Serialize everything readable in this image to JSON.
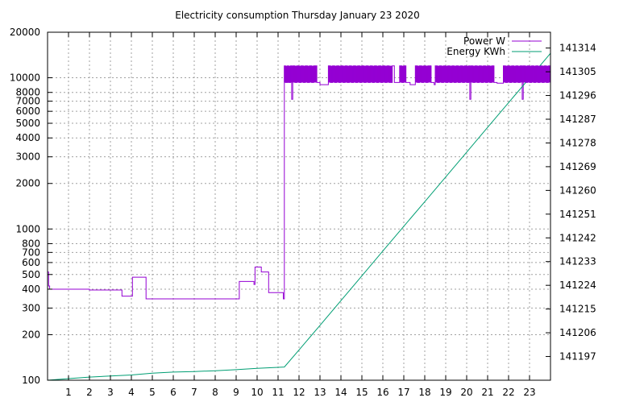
{
  "chart_data": {
    "type": "line",
    "title": "Electricity consumption Thursday January 23 2020",
    "x": {
      "label": "",
      "range": [
        0,
        24
      ],
      "ticks": [
        1,
        2,
        3,
        4,
        5,
        6,
        7,
        8,
        9,
        10,
        11,
        12,
        13,
        14,
        15,
        16,
        17,
        18,
        19,
        20,
        21,
        22,
        23
      ]
    },
    "y_left": {
      "label": "",
      "scale": "log",
      "range": [
        100,
        20000
      ],
      "ticks": [
        100,
        200,
        300,
        400,
        500,
        600,
        700,
        800,
        1000,
        2000,
        3000,
        4000,
        5000,
        6000,
        7000,
        8000,
        10000,
        20000
      ]
    },
    "y_right": {
      "label": "",
      "scale": "linear",
      "range": [
        141188,
        141320
      ],
      "ticks": [
        141197,
        141206,
        141215,
        141224,
        141233,
        141242,
        141251,
        141260,
        141269,
        141278,
        141287,
        141296,
        141305,
        141314
      ]
    },
    "grid": true,
    "legend_position": "top-right",
    "colors": {
      "power": "#9400d3",
      "energy": "#009e73"
    },
    "series": [
      {
        "name": "Power W",
        "axis": "left",
        "points": [
          [
            0.0,
            520
          ],
          [
            0.05,
            420
          ],
          [
            0.1,
            400
          ],
          [
            1.95,
            400
          ],
          [
            2.0,
            395
          ],
          [
            3.5,
            395
          ],
          [
            3.55,
            360
          ],
          [
            4.0,
            360
          ],
          [
            4.05,
            480
          ],
          [
            4.65,
            480
          ],
          [
            4.7,
            345
          ],
          [
            9.1,
            345
          ],
          [
            9.15,
            450
          ],
          [
            9.8,
            450
          ],
          [
            9.85,
            430
          ],
          [
            9.9,
            560
          ],
          [
            10.15,
            560
          ],
          [
            10.2,
            520
          ],
          [
            10.5,
            520
          ],
          [
            10.55,
            380
          ],
          [
            11.2,
            380
          ],
          [
            11.25,
            345
          ],
          [
            11.3,
            12000
          ],
          [
            11.35,
            9300
          ],
          [
            11.45,
            12000
          ],
          [
            11.5,
            9300
          ],
          [
            11.6,
            12000
          ],
          [
            11.65,
            7200
          ],
          [
            11.7,
            12000
          ],
          [
            11.8,
            9300
          ],
          [
            11.9,
            12000
          ],
          [
            12.0,
            9300
          ],
          [
            12.1,
            12000
          ],
          [
            12.2,
            9300
          ],
          [
            12.3,
            12000
          ],
          [
            12.4,
            9300
          ],
          [
            12.5,
            12000
          ],
          [
            12.6,
            9300
          ],
          [
            12.7,
            12000
          ],
          [
            12.85,
            9300
          ],
          [
            13.0,
            9000
          ],
          [
            13.35,
            9000
          ],
          [
            13.4,
            12000
          ],
          [
            13.5,
            9300
          ],
          [
            13.6,
            12000
          ],
          [
            13.7,
            9300
          ],
          [
            13.8,
            12000
          ],
          [
            13.9,
            9300
          ],
          [
            14.0,
            12000
          ],
          [
            14.1,
            9300
          ],
          [
            14.2,
            12000
          ],
          [
            14.3,
            9300
          ],
          [
            14.4,
            12000
          ],
          [
            14.5,
            9300
          ],
          [
            14.6,
            12000
          ],
          [
            14.7,
            9300
          ],
          [
            14.8,
            12000
          ],
          [
            14.9,
            9300
          ],
          [
            15.0,
            12000
          ],
          [
            15.1,
            9300
          ],
          [
            15.2,
            12000
          ],
          [
            15.3,
            9300
          ],
          [
            15.4,
            12000
          ],
          [
            15.5,
            9300
          ],
          [
            15.6,
            12000
          ],
          [
            15.7,
            9300
          ],
          [
            15.8,
            12000
          ],
          [
            15.9,
            9300
          ],
          [
            16.0,
            12000
          ],
          [
            16.1,
            9300
          ],
          [
            16.2,
            12000
          ],
          [
            16.3,
            9300
          ],
          [
            16.45,
            12000
          ],
          [
            16.55,
            9300
          ],
          [
            16.7,
            9300
          ],
          [
            16.8,
            12000
          ],
          [
            16.9,
            9300
          ],
          [
            17.0,
            12000
          ],
          [
            17.1,
            9300
          ],
          [
            17.3,
            9000
          ],
          [
            17.5,
            9000
          ],
          [
            17.55,
            12000
          ],
          [
            17.65,
            9300
          ],
          [
            17.75,
            12000
          ],
          [
            17.85,
            9300
          ],
          [
            17.95,
            12000
          ],
          [
            18.05,
            9300
          ],
          [
            18.15,
            12000
          ],
          [
            18.3,
            9300
          ],
          [
            18.45,
            9000
          ],
          [
            18.5,
            12000
          ],
          [
            18.6,
            9300
          ],
          [
            18.7,
            12000
          ],
          [
            18.8,
            9300
          ],
          [
            18.9,
            12000
          ],
          [
            19.0,
            9300
          ],
          [
            19.1,
            12000
          ],
          [
            19.2,
            9300
          ],
          [
            19.3,
            12000
          ],
          [
            19.4,
            9300
          ],
          [
            19.5,
            12000
          ],
          [
            19.6,
            9300
          ],
          [
            19.7,
            12000
          ],
          [
            19.8,
            9300
          ],
          [
            19.9,
            12000
          ],
          [
            20.0,
            9300
          ],
          [
            20.1,
            12000
          ],
          [
            20.15,
            7200
          ],
          [
            20.2,
            12000
          ],
          [
            20.3,
            9300
          ],
          [
            20.4,
            12000
          ],
          [
            20.5,
            9300
          ],
          [
            20.6,
            12000
          ],
          [
            20.7,
            9300
          ],
          [
            20.8,
            12000
          ],
          [
            20.9,
            9300
          ],
          [
            21.0,
            12000
          ],
          [
            21.1,
            9300
          ],
          [
            21.2,
            12000
          ],
          [
            21.3,
            9300
          ],
          [
            21.45,
            9200
          ],
          [
            21.7,
            9200
          ],
          [
            21.75,
            12000
          ],
          [
            21.85,
            9300
          ],
          [
            21.95,
            12000
          ],
          [
            22.05,
            9300
          ],
          [
            22.15,
            12000
          ],
          [
            22.25,
            9300
          ],
          [
            22.35,
            12000
          ],
          [
            22.45,
            9300
          ],
          [
            22.55,
            12000
          ],
          [
            22.65,
            7200
          ],
          [
            22.7,
            12000
          ],
          [
            22.8,
            9300
          ],
          [
            22.9,
            12000
          ],
          [
            23.0,
            9300
          ],
          [
            23.1,
            12000
          ],
          [
            23.2,
            9300
          ],
          [
            23.3,
            12000
          ],
          [
            23.4,
            9300
          ],
          [
            23.5,
            12000
          ],
          [
            23.6,
            9300
          ],
          [
            23.7,
            12000
          ],
          [
            23.8,
            9300
          ],
          [
            23.9,
            12000
          ],
          [
            24.0,
            12000
          ]
        ]
      },
      {
        "name": "Energy KWh",
        "axis": "right",
        "points": [
          [
            0.0,
            141188
          ],
          [
            1.0,
            141188.6
          ],
          [
            2.0,
            141189.2
          ],
          [
            3.0,
            141189.6
          ],
          [
            4.0,
            141190.0
          ],
          [
            5.0,
            141190.7
          ],
          [
            6.0,
            141191.1
          ],
          [
            7.0,
            141191.3
          ],
          [
            8.0,
            141191.6
          ],
          [
            9.0,
            141192.0
          ],
          [
            10.0,
            141192.5
          ],
          [
            11.3,
            141193.0
          ],
          [
            12.0,
            141199.5
          ],
          [
            13.0,
            141208.8
          ],
          [
            14.0,
            141218.2
          ],
          [
            15.0,
            141227.6
          ],
          [
            16.0,
            141237.0
          ],
          [
            17.0,
            141246.4
          ],
          [
            18.0,
            141255.7
          ],
          [
            19.0,
            141265.1
          ],
          [
            20.0,
            141274.5
          ],
          [
            21.0,
            141283.9
          ],
          [
            22.0,
            141293.3
          ],
          [
            23.0,
            141302.6
          ],
          [
            24.0,
            141312.0
          ]
        ]
      }
    ]
  }
}
